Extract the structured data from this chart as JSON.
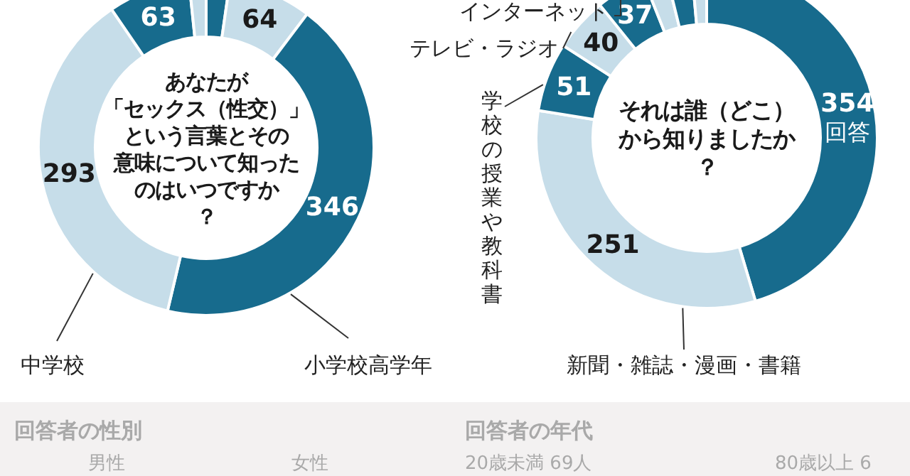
{
  "chart_data": [
    {
      "type": "donut",
      "title": "あなたが「セックス（性交）」という言葉とその意味について知ったのはいつですか？",
      "categories": [
        null,
        null,
        "小学校高学年",
        "中学校",
        null,
        null
      ],
      "values": [
        18,
        64,
        346,
        293,
        63,
        13
      ],
      "colors": [
        "#176b8d",
        "#c6dde9",
        "#176b8d",
        "#c6dde9",
        "#176b8d",
        "#c6dde9"
      ],
      "value_labels": [
        null,
        "64",
        "346",
        "293",
        "63",
        null
      ]
    },
    {
      "type": "donut",
      "title": "それは誰（どこ）から知りましたか？",
      "categories": [
        null,
        "新聞・雑誌・漫画・書籍",
        "学校の授業や教科書",
        "テレビ・ラジオ",
        "インターネット",
        null,
        null,
        null
      ],
      "values": [
        354,
        251,
        51,
        40,
        37,
        17,
        19,
        11
      ],
      "colors": [
        "#176b8d",
        "#c6dde9",
        "#176b8d",
        "#c6dde9",
        "#176b8d",
        "#c6dde9",
        "#176b8d",
        "#c6dde9"
      ],
      "value_labels": [
        "354\n回答",
        "251",
        "51",
        "40",
        "37",
        null,
        null,
        null
      ]
    },
    {
      "type": "other",
      "annotations": [
        "回答者の性別",
        "男性",
        "女性",
        "回答者の年代",
        "20歳未満 69人",
        "80歳以上 6"
      ]
    }
  ]
}
